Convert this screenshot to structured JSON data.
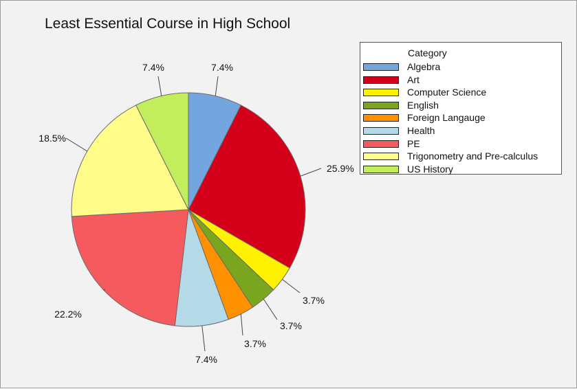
{
  "chart_data": {
    "type": "pie",
    "title": "Least Essential Course in High School",
    "legend_title": "Category",
    "legend_position": "right",
    "categories": [
      "Algebra",
      "Art",
      "Computer Science",
      "English",
      "Foreign Langauge",
      "Health",
      "PE",
      "Trigonometry and Pre-calculus",
      "US History"
    ],
    "values": [
      7.4,
      25.9,
      3.7,
      3.7,
      3.7,
      7.4,
      22.2,
      18.5,
      7.4
    ],
    "labels": [
      "7.4%",
      "25.9%",
      "3.7%",
      "3.7%",
      "3.7%",
      "7.4%",
      "22.2%",
      "18.5%",
      "7.4%"
    ],
    "colors": [
      "#73a5de",
      "#d40019",
      "#fff200",
      "#7aa51f",
      "#ff9000",
      "#b3dae6",
      "#f55a5f",
      "#fffc8a",
      "#c3ee5b"
    ],
    "start_angle": "12 o'clock",
    "direction": "clockwise"
  }
}
